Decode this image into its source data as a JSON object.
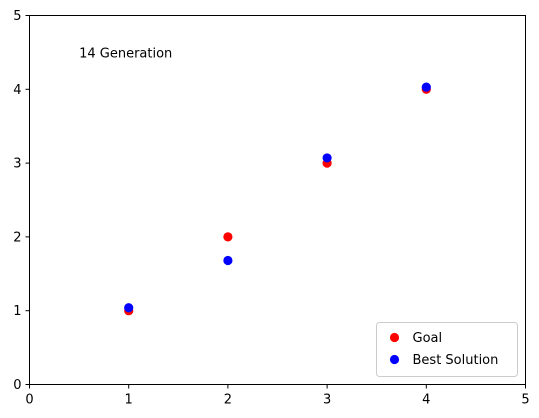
{
  "chart_data": {
    "type": "scatter",
    "xlim": [
      0,
      5
    ],
    "ylim": [
      0,
      5
    ],
    "x_ticks": [
      "0",
      "1",
      "2",
      "3",
      "4",
      "5"
    ],
    "y_ticks": [
      "0",
      "1",
      "2",
      "3",
      "4",
      "5"
    ],
    "grid": false,
    "annotation": {
      "text": "14 Generation",
      "x": 0.5,
      "y": 4.5
    },
    "legend_position": "lower-right",
    "series": [
      {
        "name": "Goal",
        "color": "#ff0000",
        "points": [
          [
            1,
            1.0
          ],
          [
            2,
            2.0
          ],
          [
            3,
            3.0
          ],
          [
            4,
            4.0
          ]
        ]
      },
      {
        "name": "Best Solution",
        "color": "#0000ff",
        "points": [
          [
            1,
            1.04
          ],
          [
            2,
            1.68
          ],
          [
            3,
            3.07
          ],
          [
            4,
            4.03
          ]
        ]
      }
    ]
  }
}
